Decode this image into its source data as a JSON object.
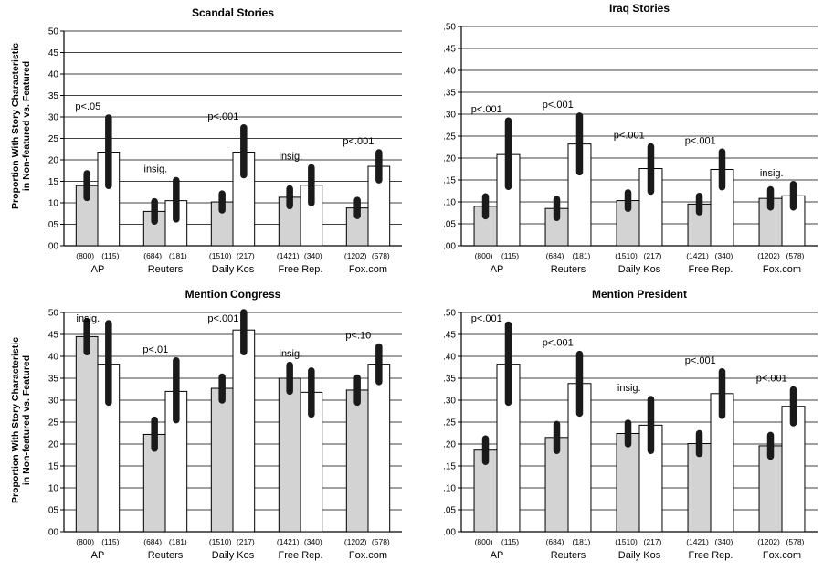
{
  "figure": {
    "y_axis_label_line1": "Proportion With Story Characteristic",
    "y_axis_label_line2": "in Non-featured vs. Featured"
  },
  "chart_data": [
    {
      "type": "bar",
      "title": "Scandal Stories",
      "ylim": [
        0,
        0.5
      ],
      "yticks": [
        ".00",
        ".05",
        ".10",
        ".15",
        ".20",
        ".25",
        ".30",
        ".35",
        ".40",
        ".45",
        ".50"
      ],
      "grid": true,
      "colors": {
        "Non-featured": "#d3d3d3",
        "Featured": "#ffffff",
        "ci": "#1a1a1a"
      },
      "categories": [
        "AP",
        "Reuters",
        "Daily Kos",
        "Free Rep.",
        "Fox.com"
      ],
      "series": [
        {
          "values": [
            0.14,
            0.08,
            0.102,
            0.113,
            0.088
          ],
          "ci": [
            [
              0.112,
              0.168
            ],
            [
              0.057,
              0.103
            ],
            [
              0.083,
              0.121
            ],
            [
              0.093,
              0.133
            ],
            [
              0.07,
              0.106
            ]
          ],
          "n": [
            "(800)",
            "(684)",
            "(1510)",
            "(1421)",
            "(1202)"
          ]
        },
        {
          "values": [
            0.218,
            0.105,
            0.218,
            0.141,
            0.185
          ],
          "ci": [
            [
              0.14,
              0.298
            ],
            [
              0.062,
              0.152
            ],
            [
              0.165,
              0.275
            ],
            [
              0.1,
              0.182
            ],
            [
              0.153,
              0.217
            ]
          ],
          "n": [
            "(115)",
            "(181)",
            "(217)",
            "(340)",
            "(578)"
          ]
        }
      ],
      "annotations": [
        "p<.05",
        "insig.",
        "p<.001",
        "insig.",
        "p<.001"
      ]
    },
    {
      "type": "bar",
      "title": "Iraq Stories",
      "ylim": [
        0,
        0.5
      ],
      "yticks": [
        ".00",
        ".05",
        ".10",
        ".15",
        ".20",
        ".25",
        ".30",
        ".35",
        ".40",
        ".45",
        ".50"
      ],
      "grid": true,
      "colors": {
        "Non-featured": "#d3d3d3",
        "Featured": "#ffffff",
        "ci": "#1a1a1a"
      },
      "categories": [
        "AP",
        "Reuters",
        "Daily Kos",
        "Free Rep.",
        "Fox.com"
      ],
      "series": [
        {
          "values": [
            0.09,
            0.085,
            0.103,
            0.095,
            0.108
          ],
          "ci": [
            [
              0.068,
              0.112
            ],
            [
              0.064,
              0.106
            ],
            [
              0.085,
              0.121
            ],
            [
              0.077,
              0.113
            ],
            [
              0.088,
              0.128
            ]
          ],
          "n": [
            "(800)",
            "(684)",
            "(1510)",
            "(1421)",
            "(1202)"
          ]
        },
        {
          "values": [
            0.208,
            0.232,
            0.176,
            0.174,
            0.114
          ],
          "ci": [
            [
              0.135,
              0.285
            ],
            [
              0.168,
              0.296
            ],
            [
              0.124,
              0.226
            ],
            [
              0.134,
              0.214
            ],
            [
              0.088,
              0.14
            ]
          ],
          "n": [
            "(115)",
            "(181)",
            "(217)",
            "(340)",
            "(578)"
          ]
        }
      ],
      "annotations": [
        "p<.001",
        "p<.001",
        "p<.001",
        "p<.001",
        "insig."
      ]
    },
    {
      "type": "bar",
      "title": "Mention Congress",
      "ylim": [
        0,
        0.5
      ],
      "yticks": [
        ".00",
        ".05",
        ".10",
        ".15",
        ".20",
        ".25",
        ".30",
        ".35",
        ".40",
        ".45",
        ".50"
      ],
      "grid": true,
      "colors": {
        "Non-featured": "#d3d3d3",
        "Featured": "#ffffff",
        "ci": "#1a1a1a"
      },
      "categories": [
        "AP",
        "Reuters",
        "Daily Kos",
        "Free Rep.",
        "Fox.com"
      ],
      "series": [
        {
          "values": [
            0.445,
            0.222,
            0.327,
            0.35,
            0.323
          ],
          "ci": [
            [
              0.41,
              0.48
            ],
            [
              0.19,
              0.255
            ],
            [
              0.3,
              0.353
            ],
            [
              0.32,
              0.38
            ],
            [
              0.295,
              0.351
            ]
          ],
          "n": [
            "(800)",
            "(684)",
            "(1510)",
            "(1421)",
            "(1202)"
          ]
        },
        {
          "values": [
            0.382,
            0.32,
            0.46,
            0.318,
            0.382
          ],
          "ci": [
            [
              0.295,
              0.475
            ],
            [
              0.255,
              0.39
            ],
            [
              0.41,
              0.5
            ],
            [
              0.268,
              0.367
            ],
            [
              0.342,
              0.422
            ]
          ],
          "n": [
            "(115)",
            "(181)",
            "(217)",
            "(340)",
            "(578)"
          ]
        }
      ],
      "annotations": [
        "insig.",
        "p<.01",
        "p<.001",
        "insig.",
        "p<.10"
      ]
    },
    {
      "type": "bar",
      "title": "Mention President",
      "ylim": [
        0,
        0.5
      ],
      "yticks": [
        ".00",
        ".05",
        ".10",
        ".15",
        ".20",
        ".25",
        ".30",
        ".35",
        ".40",
        ".45",
        ".50"
      ],
      "grid": true,
      "colors": {
        "Non-featured": "#d3d3d3",
        "Featured": "#ffffff",
        "ci": "#1a1a1a"
      },
      "categories": [
        "AP",
        "Reuters",
        "Daily Kos",
        "Free Rep.",
        "Fox.com"
      ],
      "series": [
        {
          "values": [
            0.186,
            0.215,
            0.224,
            0.201,
            0.196
          ],
          "ci": [
            [
              0.16,
              0.212
            ],
            [
              0.185,
              0.245
            ],
            [
              0.2,
              0.248
            ],
            [
              0.178,
              0.224
            ],
            [
              0.172,
              0.22
            ]
          ],
          "n": [
            "(800)",
            "(684)",
            "(1510)",
            "(1421)",
            "(1202)"
          ]
        },
        {
          "values": [
            0.382,
            0.338,
            0.243,
            0.315,
            0.286
          ],
          "ci": [
            [
              0.295,
              0.472
            ],
            [
              0.27,
              0.405
            ],
            [
              0.185,
              0.302
            ],
            [
              0.265,
              0.365
            ],
            [
              0.248,
              0.324
            ]
          ],
          "n": [
            "(115)",
            "(181)",
            "(217)",
            "(340)",
            "(578)"
          ]
        }
      ],
      "annotations": [
        "p<.001",
        "p<.001",
        "insig.",
        "p<.001",
        "p<.001"
      ]
    }
  ]
}
